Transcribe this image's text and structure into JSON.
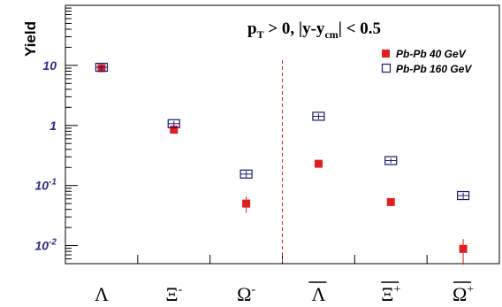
{
  "chart_data": {
    "type": "scatter",
    "ylabel": "Yield",
    "yscale": "log",
    "ylim": [
      0.005,
      100
    ],
    "annotation": {
      "main": "p",
      "sub": "T",
      "rest": " > 0,   |y-y",
      "sub2": "cm",
      "rest2": "| < 0.5"
    },
    "yticks": [
      {
        "value": 10,
        "base": "10",
        "exp": ""
      },
      {
        "value": 1,
        "base": "1",
        "exp": ""
      },
      {
        "value": 0.1,
        "base": "10",
        "exp": "-1"
      },
      {
        "value": 0.01,
        "base": "10",
        "exp": "-2"
      }
    ],
    "categories": [
      {
        "base": "Λ",
        "sup": "",
        "bar": false
      },
      {
        "base": "Ξ",
        "sup": "-",
        "bar": false
      },
      {
        "base": "Ω",
        "sup": "-",
        "bar": false
      },
      {
        "base": "Λ",
        "sup": "",
        "bar": true
      },
      {
        "base": "Ξ",
        "sup": "+",
        "bar": true
      },
      {
        "base": "Ω",
        "sup": "+",
        "bar": true
      }
    ],
    "legend_position": "top-right",
    "divider_after_category": 3,
    "series": [
      {
        "name": "Pb-Pb  40 GeV",
        "marker": "filled-square",
        "color": "#e02020",
        "values": [
          9.0,
          0.85,
          0.05,
          0.23,
          0.053,
          0.0088
        ],
        "err_low": [
          1.0,
          0.1,
          0.015,
          0.02,
          0.006,
          0.004
        ],
        "err_high": [
          1.0,
          0.1,
          0.015,
          0.02,
          0.006,
          0.004
        ]
      },
      {
        "name": "Pb-Pb 160 GeV",
        "marker": "open-square",
        "color": "#1a1a6e",
        "values": [
          9.3,
          1.07,
          0.155,
          1.42,
          0.26,
          0.068
        ],
        "err_low": [
          1.1,
          0.12,
          0.02,
          0.15,
          0.025,
          0.008
        ],
        "err_high": [
          1.1,
          0.12,
          0.02,
          0.15,
          0.025,
          0.008
        ]
      }
    ]
  }
}
